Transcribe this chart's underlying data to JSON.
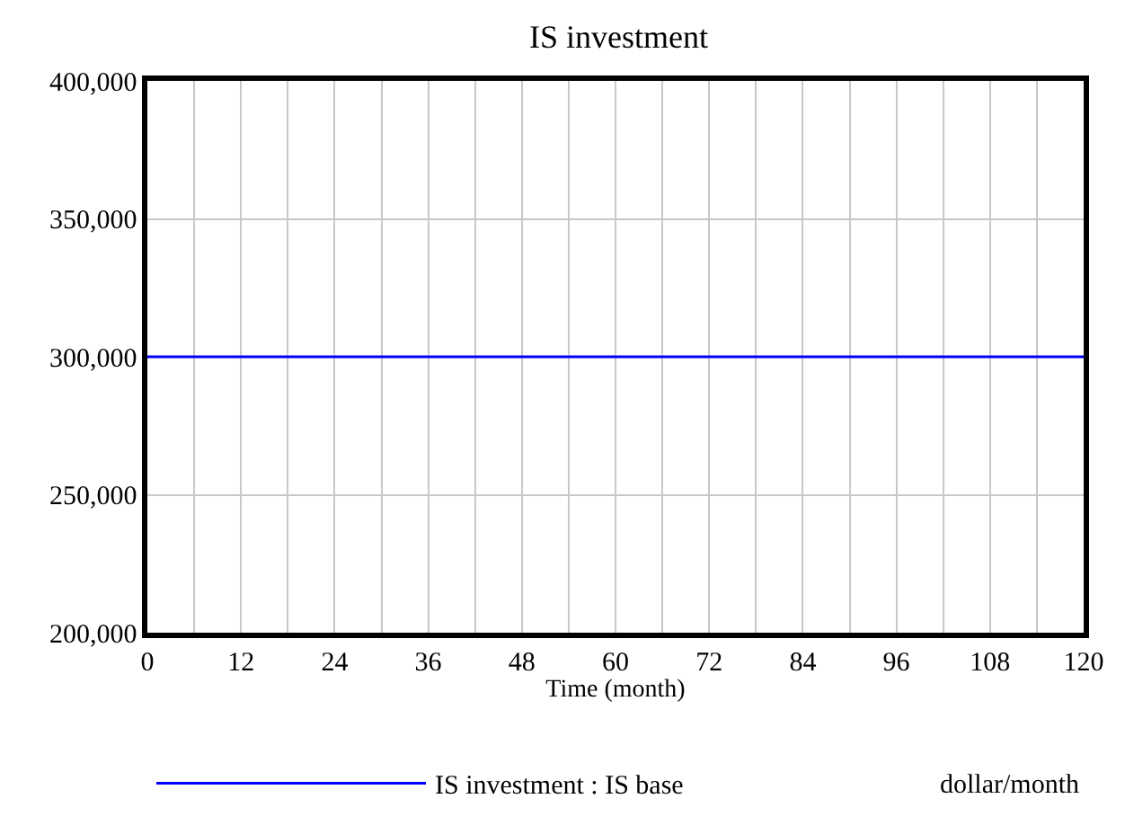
{
  "chart_data": {
    "type": "line",
    "title": "IS investment",
    "xlabel": "Time (month)",
    "x": [
      0,
      120
    ],
    "series": [
      {
        "name": "IS investment : IS base",
        "color": "#0000ff",
        "values": [
          300000,
          300000
        ]
      }
    ],
    "xlim": [
      0,
      120
    ],
    "xticks": [
      0,
      {
        "value": 6,
        "label": null
      },
      12,
      {
        "value": 18,
        "label": null
      },
      24,
      {
        "value": 30,
        "label": null
      },
      36,
      {
        "value": 42,
        "label": null
      },
      48,
      {
        "value": 54,
        "label": null
      },
      60,
      {
        "value": 66,
        "label": null
      },
      72,
      {
        "value": 78,
        "label": null
      },
      84,
      {
        "value": 90,
        "label": null
      },
      96,
      {
        "value": 102,
        "label": null
      },
      108,
      {
        "value": 114,
        "label": null
      },
      120
    ],
    "ylim": [
      200000,
      400000
    ],
    "yticks": [
      {
        "value": 200000,
        "label": "200,000"
      },
      {
        "value": 250000,
        "label": "250,000"
      },
      {
        "value": 300000,
        "label": "300,000"
      },
      {
        "value": 350000,
        "label": "350,000"
      },
      {
        "value": 400000,
        "label": "400,000"
      }
    ],
    "grid": true,
    "legend": "bottom",
    "marker": "none",
    "line_style": "solid",
    "annotations": [
      "dollar/month"
    ]
  }
}
